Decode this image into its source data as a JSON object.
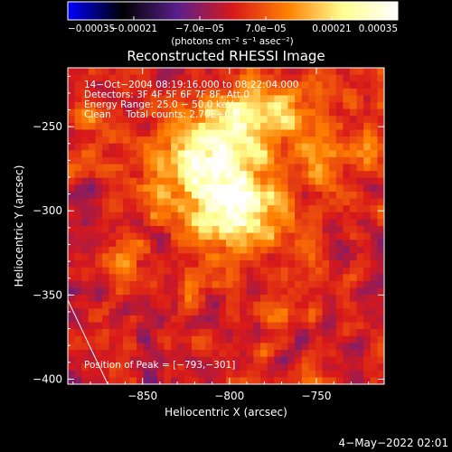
{
  "chart_data": {
    "type": "heatmap",
    "title": "Reconstructed RHESSI Image",
    "xlabel": "Heliocentric X (arcsec)",
    "ylabel": "Heliocentric Y (arcsec)",
    "xlim": [
      -893,
      -711
    ],
    "ylim": [
      -403,
      -215
    ],
    "x_ticks": [
      {
        "value": -850,
        "label": "−850"
      },
      {
        "value": -800,
        "label": "−800"
      },
      {
        "value": -750,
        "label": "−750"
      }
    ],
    "y_ticks": [
      {
        "value": -250,
        "label": "−250"
      },
      {
        "value": -300,
        "label": "−300"
      },
      {
        "value": -350,
        "label": "−350"
      },
      {
        "value": -400,
        "label": "−400"
      }
    ],
    "colorbar": {
      "range": [
        -0.00035,
        0.00035
      ],
      "ticks": [
        {
          "value": -0.00035,
          "label": "−0.00035"
        },
        {
          "value": -0.00021,
          "label": "−0.00021"
        },
        {
          "value": -7e-05,
          "label": "−7.0e−05"
        },
        {
          "value": 7e-05,
          "label": "7.0e−05"
        },
        {
          "value": 0.00021,
          "label": "0.00021"
        },
        {
          "value": 0.00035,
          "label": "0.00035"
        }
      ],
      "unit_label": "(photons cm⁻² s⁻¹ asec⁻²)"
    },
    "annotations": [
      "14−Oct−2004 08:19:16.000 to 08:22:04.000",
      "Detectors: 3F 4F 5F 6F 7F 8F, Att 0",
      "Energy Range: 25.0 − 50.0 keV",
      "Clean     Total counts: 2.70E+03"
    ],
    "peak_label": "Position of Peak = [−793,−301]",
    "peak": {
      "x": -793,
      "y": -301
    },
    "limb": [
      [
        -893,
        -353
      ],
      [
        -870,
        -403
      ]
    ],
    "sources": [
      {
        "x": -800,
        "y": -295,
        "sx": 16,
        "sy": 18,
        "amp": 0.00031
      },
      {
        "x": -815,
        "y": -268,
        "sx": 22,
        "sy": 16,
        "amp": 0.00021
      },
      {
        "x": -795,
        "y": -245,
        "sx": 20,
        "sy": 14,
        "amp": 0.00016
      },
      {
        "x": -765,
        "y": -240,
        "sx": 14,
        "sy": 12,
        "amp": 0.00014
      },
      {
        "x": -745,
        "y": -270,
        "sx": 10,
        "sy": 18,
        "amp": 0.00012
      },
      {
        "x": -775,
        "y": -310,
        "sx": 10,
        "sy": 12,
        "amp": 0.00013
      },
      {
        "x": -845,
        "y": -290,
        "sx": 10,
        "sy": 10,
        "amp": 0.00011
      },
      {
        "x": -860,
        "y": -330,
        "sx": 7,
        "sy": 8,
        "amp": 0.00013
      },
      {
        "x": -880,
        "y": -245,
        "sx": 6,
        "sy": 6,
        "amp": 0.0001
      },
      {
        "x": -773,
        "y": -358,
        "sx": 5,
        "sy": 6,
        "amp": 0.00013
      },
      {
        "x": -720,
        "y": -260,
        "sx": 6,
        "sy": 10,
        "amp": 0.00012
      },
      {
        "x": -822,
        "y": -350,
        "sx": 5,
        "sy": 6,
        "amp": 0.0001
      },
      {
        "x": -752,
        "y": -330,
        "sx": 6,
        "sy": 8,
        "amp": 9e-05
      }
    ],
    "noise_amplitude": 9e-05
  },
  "footer": {
    "timestamp": "4−May−2022 02:01"
  },
  "colors": {
    "background": "#000000",
    "text": "#ffffff",
    "colormap_stops": [
      "#0000ff",
      "#000000",
      "#5a1f8c",
      "#d8181a",
      "#ff8000",
      "#ffff90",
      "#ffffff"
    ]
  }
}
